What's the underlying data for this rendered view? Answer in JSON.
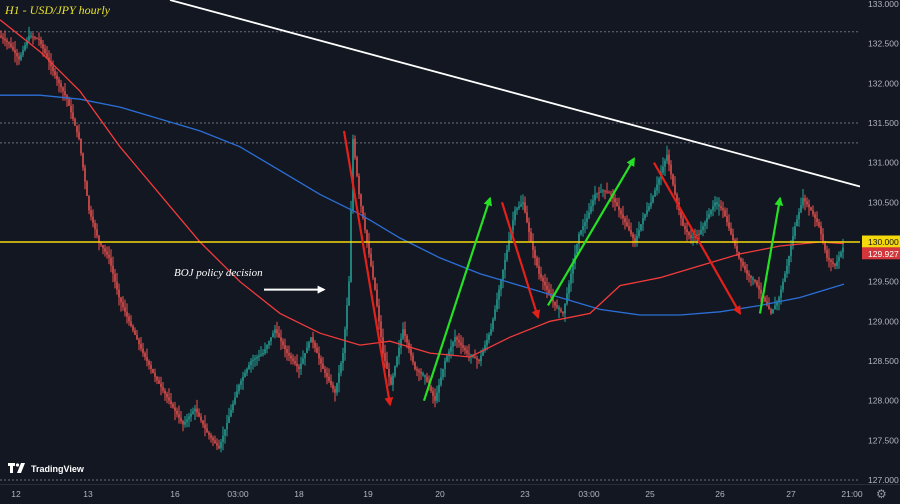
{
  "title": "H1 - USD/JPY hourly",
  "brand": "TradingView",
  "annotation": "BOJ policy decision",
  "current_price": "129.927",
  "key_level": "130.000",
  "colors": {
    "background": "#131722",
    "candle_up": "#26a69a",
    "candle_down": "#ef5350",
    "ma_fast": "#f23b3b",
    "ma_slow": "#2b6fd6",
    "trendline": "#ffffff",
    "key_level_line": "#f5d90a",
    "price_label_bg": "#f5d90a",
    "current_label_bg": "#d3373b",
    "arrow_up": "#25e025",
    "arrow_down": "#e4201a"
  },
  "icons": [
    "tradingview-logo-icon",
    "gear-icon"
  ],
  "chart_data": {
    "type": "candlestick",
    "title": "H1 - USD/JPY hourly",
    "x_tick_labels": [
      "12",
      "13",
      "16",
      "03:00",
      "18",
      "19",
      "20",
      "23",
      "03:00",
      "25",
      "26",
      "27",
      "21:00"
    ],
    "y_tick_labels": [
      "127.000",
      "127.500",
      "128.000",
      "128.500",
      "129.000",
      "129.500",
      "130.000",
      "130.500",
      "131.000",
      "131.500",
      "132.000",
      "132.500",
      "133.000"
    ],
    "ylim": [
      126.95,
      133.05
    ],
    "dashed_levels": [
      132.65,
      131.5,
      131.25,
      127.0
    ],
    "key_level": 130.0,
    "current_price": 129.927,
    "price_path": [
      [
        0,
        132.6
      ],
      [
        5,
        132.5
      ],
      [
        10,
        132.3
      ],
      [
        15,
        132.6
      ],
      [
        20,
        132.55
      ],
      [
        28,
        132.1
      ],
      [
        34,
        131.8
      ],
      [
        40,
        131.3
      ],
      [
        45,
        130.4
      ],
      [
        50,
        130.0
      ],
      [
        55,
        129.8
      ],
      [
        60,
        129.3
      ],
      [
        65,
        129.0
      ],
      [
        72,
        128.6
      ],
      [
        78,
        128.3
      ],
      [
        85,
        128.0
      ],
      [
        92,
        127.7
      ],
      [
        98,
        127.9
      ],
      [
        104,
        127.6
      ],
      [
        110,
        127.4
      ],
      [
        115,
        127.8
      ],
      [
        120,
        128.2
      ],
      [
        126,
        128.5
      ],
      [
        132,
        128.6
      ],
      [
        138,
        128.9
      ],
      [
        144,
        128.6
      ],
      [
        150,
        128.4
      ],
      [
        156,
        128.8
      ],
      [
        162,
        128.4
      ],
      [
        168,
        128.1
      ],
      [
        172,
        128.6
      ],
      [
        175,
        129.5
      ],
      [
        177,
        131.3
      ],
      [
        180,
        130.6
      ],
      [
        184,
        130.0
      ],
      [
        188,
        129.4
      ],
      [
        192,
        128.6
      ],
      [
        196,
        128.2
      ],
      [
        202,
        128.9
      ],
      [
        208,
        128.4
      ],
      [
        213,
        128.3
      ],
      [
        218,
        128.0
      ],
      [
        223,
        128.5
      ],
      [
        228,
        128.8
      ],
      [
        234,
        128.6
      ],
      [
        240,
        128.5
      ],
      [
        246,
        128.9
      ],
      [
        250,
        129.4
      ],
      [
        254,
        129.9
      ],
      [
        258,
        130.4
      ],
      [
        262,
        130.5
      ],
      [
        266,
        130.0
      ],
      [
        270,
        129.6
      ],
      [
        274,
        129.4
      ],
      [
        278,
        129.2
      ],
      [
        282,
        129.1
      ],
      [
        286,
        129.6
      ],
      [
        290,
        130.1
      ],
      [
        294,
        130.3
      ],
      [
        298,
        130.6
      ],
      [
        302,
        130.65
      ],
      [
        306,
        130.6
      ],
      [
        312,
        130.3
      ],
      [
        318,
        130.0
      ],
      [
        322,
        130.3
      ],
      [
        326,
        130.5
      ],
      [
        330,
        130.8
      ],
      [
        334,
        131.1
      ],
      [
        338,
        130.6
      ],
      [
        342,
        130.2
      ],
      [
        346,
        130.05
      ],
      [
        350,
        130.1
      ],
      [
        354,
        130.3
      ],
      [
        358,
        130.5
      ],
      [
        362,
        130.4
      ],
      [
        366,
        130.1
      ],
      [
        370,
        129.8
      ],
      [
        374,
        129.6
      ],
      [
        378,
        129.5
      ],
      [
        382,
        129.3
      ],
      [
        386,
        129.1
      ],
      [
        390,
        129.3
      ],
      [
        394,
        129.7
      ],
      [
        398,
        130.2
      ],
      [
        402,
        130.55
      ],
      [
        406,
        130.4
      ],
      [
        410,
        130.2
      ],
      [
        414,
        129.8
      ],
      [
        418,
        129.7
      ],
      [
        422,
        129.93
      ]
    ],
    "series": [
      {
        "name": "",
        "type": "line",
        "points": [
          [
            0,
            131.85
          ],
          [
            20,
            131.85
          ],
          [
            40,
            131.8
          ],
          [
            60,
            131.7
          ],
          [
            80,
            131.55
          ],
          [
            100,
            131.4
          ],
          [
            120,
            131.2
          ],
          [
            140,
            130.9
          ],
          [
            160,
            130.6
          ],
          [
            180,
            130.35
          ],
          [
            200,
            130.05
          ],
          [
            220,
            129.8
          ],
          [
            240,
            129.6
          ],
          [
            260,
            129.45
          ],
          [
            280,
            129.3
          ],
          [
            300,
            129.15
          ],
          [
            320,
            129.08
          ],
          [
            340,
            129.08
          ],
          [
            360,
            129.12
          ],
          [
            380,
            129.2
          ],
          [
            400,
            129.3
          ],
          [
            422,
            129.47
          ]
        ]
      },
      {
        "name": "",
        "type": "line",
        "points": [
          [
            0,
            132.8
          ],
          [
            20,
            132.4
          ],
          [
            40,
            131.9
          ],
          [
            60,
            131.2
          ],
          [
            80,
            130.6
          ],
          [
            100,
            130.0
          ],
          [
            120,
            129.5
          ],
          [
            140,
            129.1
          ],
          [
            160,
            128.85
          ],
          [
            180,
            128.7
          ],
          [
            195,
            128.75
          ],
          [
            215,
            128.6
          ],
          [
            235,
            128.55
          ],
          [
            255,
            128.8
          ],
          [
            275,
            129.0
          ],
          [
            295,
            129.1
          ],
          [
            310,
            129.45
          ],
          [
            330,
            129.55
          ],
          [
            350,
            129.7
          ],
          [
            370,
            129.85
          ],
          [
            390,
            129.95
          ],
          [
            410,
            130.0
          ],
          [
            422,
            129.98
          ]
        ]
      }
    ],
    "trendline": [
      [
        85,
        133.05
      ],
      [
        430,
        130.7
      ]
    ],
    "arrows": [
      {
        "direction": "down",
        "from": [
          172,
          131.4
        ],
        "to": [
          195,
          127.95
        ]
      },
      {
        "direction": "up",
        "from": [
          212,
          128.0
        ],
        "to": [
          245,
          130.55
        ]
      },
      {
        "direction": "down",
        "from": [
          251,
          130.5
        ],
        "to": [
          269,
          129.05
        ]
      },
      {
        "direction": "up",
        "from": [
          274,
          129.2
        ],
        "to": [
          317,
          131.05
        ]
      },
      {
        "direction": "down",
        "from": [
          327,
          131.0
        ],
        "to": [
          370,
          129.1
        ]
      },
      {
        "direction": "up",
        "from": [
          380,
          129.1
        ],
        "to": [
          390,
          130.55
        ]
      }
    ],
    "annotation": {
      "text": "BOJ policy decision",
      "arrow_from": [
        132,
        129.4
      ],
      "arrow_to": [
        162,
        129.4
      ]
    }
  }
}
